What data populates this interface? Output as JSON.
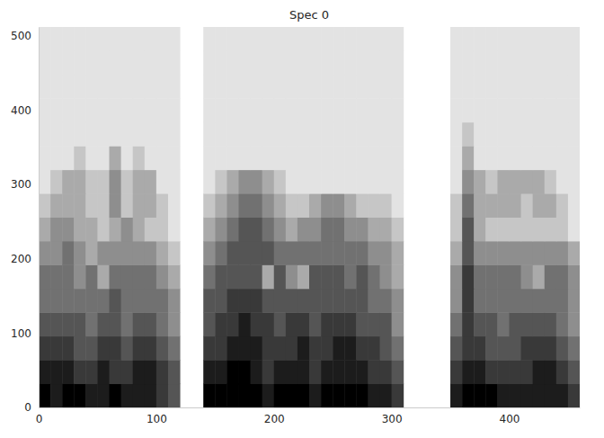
{
  "chart_data": {
    "type": "heatmap",
    "title": "Spec 0",
    "xlim": [
      0,
      460
    ],
    "ylim": [
      0,
      512
    ],
    "xticks": [
      0,
      100,
      200,
      300,
      400
    ],
    "yticks": [
      0,
      100,
      200,
      300,
      400,
      500
    ],
    "grid": false,
    "color": "#000000",
    "cell_range": [
      0,
      9
    ],
    "x_bins": [
      0,
      10,
      20,
      30,
      40,
      50,
      60,
      70,
      80,
      90,
      100,
      110,
      120,
      130,
      140,
      150,
      160,
      170,
      180,
      190,
      200,
      210,
      220,
      230,
      240,
      250,
      260,
      270,
      280,
      290,
      300,
      310,
      320,
      330,
      340,
      350,
      360,
      370,
      380,
      390,
      400,
      410,
      420,
      430,
      440,
      450,
      460
    ],
    "y_bins": [
      0,
      32,
      64,
      96,
      128,
      160,
      192,
      224,
      256,
      288,
      320,
      352,
      384,
      416,
      448,
      480,
      512
    ],
    "cells": [
      [
        9,
        8,
        9,
        9,
        8,
        8,
        9,
        8,
        8,
        8,
        7,
        6,
        null,
        null,
        9,
        9,
        9,
        9,
        9,
        8,
        9,
        9,
        9,
        8,
        9,
        9,
        9,
        9,
        8,
        8,
        7,
        null,
        null,
        null,
        null,
        8,
        9,
        9,
        9,
        8,
        8,
        8,
        8,
        8,
        8,
        7
      ],
      [
        8,
        8,
        8,
        7,
        7,
        8,
        7,
        7,
        8,
        8,
        7,
        6,
        null,
        null,
        8,
        8,
        9,
        9,
        8,
        7,
        8,
        8,
        8,
        7,
        8,
        8,
        8,
        8,
        7,
        7,
        6,
        null,
        null,
        null,
        null,
        7,
        8,
        8,
        7,
        7,
        7,
        7,
        8,
        8,
        7,
        6
      ],
      [
        7,
        7,
        7,
        6,
        6,
        7,
        7,
        6,
        7,
        7,
        6,
        5,
        null,
        null,
        7,
        7,
        8,
        8,
        8,
        7,
        7,
        7,
        8,
        7,
        7,
        8,
        8,
        7,
        7,
        6,
        5,
        null,
        null,
        null,
        null,
        6,
        7,
        7,
        6,
        6,
        6,
        7,
        7,
        7,
        6,
        5
      ],
      [
        6,
        6,
        6,
        6,
        5,
        6,
        6,
        5,
        6,
        6,
        5,
        4,
        null,
        null,
        6,
        7,
        7,
        8,
        7,
        7,
        6,
        7,
        7,
        6,
        7,
        7,
        7,
        6,
        6,
        6,
        4,
        null,
        null,
        null,
        null,
        5,
        7,
        6,
        6,
        5,
        6,
        6,
        6,
        6,
        5,
        4
      ],
      [
        5,
        5,
        5,
        5,
        5,
        5,
        6,
        5,
        5,
        5,
        5,
        4,
        null,
        null,
        6,
        6,
        7,
        7,
        7,
        6,
        6,
        6,
        6,
        6,
        6,
        6,
        6,
        6,
        5,
        5,
        4,
        null,
        null,
        null,
        null,
        4,
        7,
        5,
        5,
        5,
        5,
        5,
        5,
        5,
        5,
        4
      ],
      [
        5,
        5,
        5,
        4,
        5,
        3,
        5,
        5,
        5,
        5,
        4,
        3,
        null,
        null,
        5,
        6,
        6,
        6,
        6,
        3,
        6,
        4,
        3,
        6,
        6,
        6,
        5,
        6,
        5,
        4,
        3,
        null,
        null,
        null,
        null,
        4,
        7,
        5,
        5,
        5,
        5,
        4,
        3,
        5,
        5,
        4
      ],
      [
        4,
        4,
        5,
        4,
        3,
        4,
        4,
        4,
        4,
        4,
        3,
        2,
        null,
        null,
        4,
        5,
        6,
        6,
        6,
        6,
        5,
        5,
        5,
        5,
        5,
        5,
        5,
        5,
        4,
        4,
        3,
        null,
        null,
        null,
        null,
        3,
        6,
        4,
        4,
        4,
        4,
        4,
        4,
        4,
        4,
        3
      ],
      [
        3,
        4,
        4,
        3,
        3,
        2,
        3,
        4,
        3,
        2,
        2,
        1,
        null,
        null,
        3,
        4,
        5,
        6,
        6,
        5,
        4,
        3,
        4,
        4,
        5,
        5,
        4,
        4,
        3,
        3,
        2,
        null,
        null,
        null,
        null,
        2,
        6,
        3,
        2,
        2,
        2,
        2,
        2,
        2,
        2,
        1
      ],
      [
        2,
        3,
        3,
        3,
        2,
        2,
        4,
        2,
        3,
        3,
        2,
        1,
        null,
        null,
        2,
        3,
        4,
        5,
        5,
        4,
        3,
        2,
        2,
        3,
        4,
        4,
        3,
        2,
        2,
        2,
        1,
        null,
        null,
        null,
        null,
        2,
        5,
        3,
        3,
        3,
        3,
        2,
        3,
        3,
        2,
        1
      ],
      [
        1,
        2,
        3,
        3,
        2,
        2,
        4,
        2,
        3,
        3,
        1,
        1,
        null,
        null,
        1,
        2,
        3,
        4,
        4,
        3,
        2,
        1,
        1,
        1,
        1,
        1,
        1,
        1,
        1,
        1,
        1,
        null,
        null,
        null,
        null,
        1,
        4,
        3,
        2,
        3,
        3,
        3,
        3,
        2,
        1,
        1
      ],
      [
        1,
        1,
        1,
        2,
        1,
        1,
        3,
        1,
        2,
        1,
        1,
        1,
        null,
        null,
        1,
        1,
        1,
        1,
        1,
        1,
        1,
        1,
        1,
        1,
        1,
        1,
        1,
        1,
        1,
        1,
        1,
        null,
        null,
        null,
        null,
        1,
        3,
        1,
        1,
        1,
        1,
        1,
        1,
        1,
        1,
        1
      ],
      [
        1,
        1,
        1,
        1,
        1,
        1,
        1,
        1,
        1,
        1,
        1,
        1,
        null,
        null,
        1,
        1,
        1,
        1,
        1,
        1,
        1,
        1,
        1,
        1,
        1,
        1,
        1,
        1,
        1,
        1,
        1,
        null,
        null,
        null,
        null,
        1,
        2,
        1,
        1,
        1,
        1,
        1,
        1,
        1,
        1,
        1
      ],
      [
        1,
        1,
        1,
        1,
        1,
        1,
        1,
        1,
        1,
        1,
        1,
        1,
        null,
        null,
        1,
        1,
        1,
        1,
        1,
        1,
        1,
        1,
        1,
        1,
        1,
        1,
        1,
        1,
        1,
        1,
        1,
        null,
        null,
        null,
        null,
        1,
        1,
        1,
        1,
        1,
        1,
        1,
        1,
        1,
        1,
        1
      ],
      [
        1,
        1,
        1,
        1,
        1,
        1,
        1,
        1,
        1,
        1,
        1,
        1,
        null,
        null,
        1,
        1,
        1,
        1,
        1,
        1,
        1,
        1,
        1,
        1,
        1,
        1,
        1,
        1,
        1,
        1,
        1,
        null,
        null,
        null,
        null,
        1,
        1,
        1,
        1,
        1,
        1,
        1,
        1,
        1,
        1,
        1
      ],
      [
        1,
        1,
        1,
        1,
        1,
        1,
        1,
        1,
        1,
        1,
        1,
        1,
        null,
        null,
        1,
        1,
        1,
        1,
        1,
        1,
        1,
        1,
        1,
        1,
        1,
        1,
        1,
        1,
        1,
        1,
        1,
        null,
        null,
        null,
        null,
        1,
        1,
        1,
        1,
        1,
        1,
        1,
        1,
        1,
        1,
        1
      ],
      [
        1,
        1,
        1,
        1,
        1,
        1,
        1,
        1,
        1,
        1,
        1,
        1,
        null,
        null,
        1,
        1,
        1,
        1,
        1,
        1,
        1,
        1,
        1,
        1,
        1,
        1,
        1,
        1,
        1,
        1,
        1,
        null,
        null,
        null,
        null,
        1,
        1,
        1,
        1,
        1,
        1,
        1,
        1,
        1,
        1,
        1
      ]
    ]
  }
}
